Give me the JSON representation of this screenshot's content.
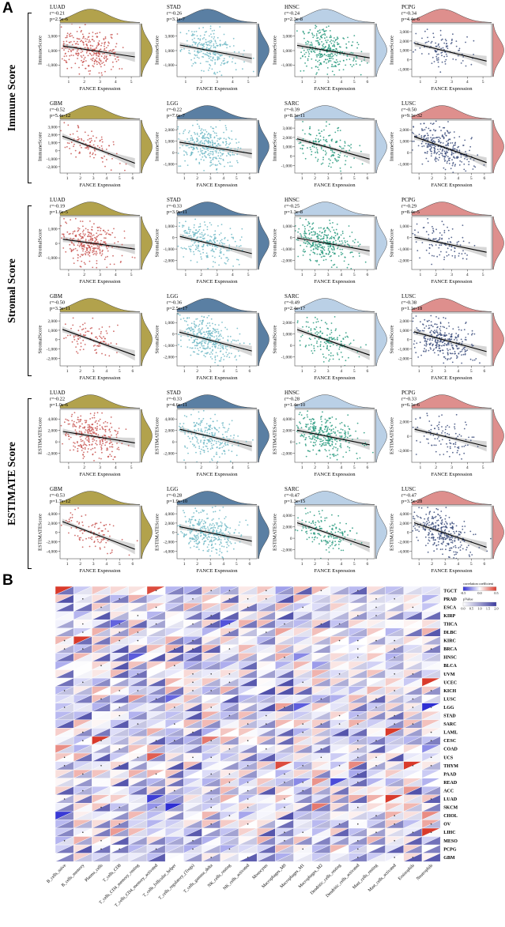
{
  "figure": {
    "panel_a_letter": "A",
    "panel_b_letter": "B"
  },
  "chart_data": [
    {
      "type": "scatter",
      "id": "panelA",
      "xlabel": "FANCE Expression",
      "groups": [
        {
          "label": "Immune Score",
          "ylabel": "ImmuneScore",
          "plots": [
            {
              "cancer": "LUAD",
              "r_text": "r=-0.21",
              "p_text": "p=2.5e-6",
              "r": -0.21,
              "n": 450,
              "dot": "#c85450",
              "marg": "#b2a24c",
              "xticks": [
                1,
                2,
                3,
                4,
                5
              ],
              "yticks": [
                3000,
                1000,
                -1000
              ]
            },
            {
              "cancer": "STAD",
              "r_text": "r=-0.26",
              "p_text": "p=3.1e-7",
              "r": -0.26,
              "n": 380,
              "dot": "#6fb9c6",
              "marg": "#5a7fa3",
              "xticks": [
                1,
                2,
                3,
                4,
                5
              ],
              "yticks": [
                3000,
                1000,
                -1000
              ]
            },
            {
              "cancer": "HNSC",
              "r_text": "r=-0.24",
              "p_text": "p=2.3e-8",
              "r": -0.24,
              "n": 480,
              "dot": "#26997c",
              "marg": "#bad0e6",
              "xticks": [
                1,
                2,
                3,
                4,
                5,
                6
              ],
              "yticks": [
                3000,
                1000,
                -1000
              ]
            },
            {
              "cancer": "PCPG",
              "r_text": "r=-0.34",
              "p_text": "p=4.4e-6",
              "r": -0.34,
              "n": 170,
              "dot": "#3c4e7d",
              "marg": "#de8f8d",
              "xticks": [
                1,
                2,
                3,
                4,
                5
              ],
              "yticks": [
                3000,
                2000,
                1000,
                0,
                -1000
              ]
            },
            {
              "cancer": "GBM",
              "r_text": "r=-0.52",
              "p_text": "p=5.4e-12",
              "r": -0.52,
              "n": 160,
              "dot": "#c85450",
              "marg": "#b2a24c",
              "xticks": [
                1,
                2,
                3,
                4,
                5,
                6
              ],
              "yticks": [
                3000,
                2000,
                1000,
                0,
                -1000,
                -2000
              ]
            },
            {
              "cancer": "LGG",
              "r_text": "r=-0.22",
              "p_text": "p=7.6e-7",
              "r": -0.22,
              "n": 500,
              "dot": "#6fb9c6",
              "marg": "#5a7fa3",
              "xticks": [
                1,
                2,
                3,
                4,
                5,
                6
              ],
              "yticks": [
                2000,
                1000,
                0,
                -1000
              ]
            },
            {
              "cancer": "SARC",
              "r_text": "r=-0.39",
              "p_text": "p=8.1e-11",
              "r": -0.39,
              "n": 250,
              "dot": "#26997c",
              "marg": "#bad0e6",
              "xticks": [
                1,
                2,
                3,
                4,
                5,
                6
              ],
              "yticks": [
                3000,
                2000,
                1000,
                0,
                -1000
              ]
            },
            {
              "cancer": "LUSC",
              "r_text": "r=-0.50",
              "p_text": "p=9.1e-32",
              "r": -0.5,
              "n": 470,
              "dot": "#3c4e7d",
              "marg": "#de8f8d",
              "xticks": [
                1,
                2,
                3,
                4,
                5,
                6
              ],
              "yticks": [
                2000,
                1000,
                0,
                -1000
              ]
            }
          ]
        },
        {
          "label": "Stromal Score",
          "ylabel": "StromalScore",
          "plots": [
            {
              "cancer": "LUAD",
              "r_text": "r=-0.19",
              "p_text": "p=1.6e-5",
              "r": -0.19,
              "n": 450,
              "dot": "#c85450",
              "marg": "#b2a24c",
              "xticks": [
                1,
                2,
                3,
                4,
                5
              ],
              "yticks": [
                1000,
                0,
                -1000
              ]
            },
            {
              "cancer": "STAD",
              "r_text": "r=-0.33",
              "p_text": "p=3.9e-11",
              "r": -0.33,
              "n": 380,
              "dot": "#6fb9c6",
              "marg": "#5a7fa3",
              "xticks": [
                1,
                2,
                3,
                4,
                5
              ],
              "yticks": [
                1000,
                0,
                -1000,
                -2000
              ]
            },
            {
              "cancer": "HNSC",
              "r_text": "r=-0.25",
              "p_text": "p=1.3e-8",
              "r": -0.25,
              "n": 480,
              "dot": "#26997c",
              "marg": "#bad0e6",
              "xticks": [
                1,
                2,
                3,
                4,
                5,
                6
              ],
              "yticks": [
                1000,
                0,
                -1000,
                -2000
              ]
            },
            {
              "cancer": "PCPG",
              "r_text": "r=-0.29",
              "p_text": "p=8.4e-5",
              "r": -0.29,
              "n": 170,
              "dot": "#3c4e7d",
              "marg": "#de8f8d",
              "xticks": [
                1,
                2,
                3,
                4,
                5
              ],
              "yticks": [
                1000,
                0,
                -1000,
                -2000
              ]
            },
            {
              "cancer": "GBM",
              "r_text": "r=-0.50",
              "p_text": "p=3.3e-11",
              "r": -0.5,
              "n": 160,
              "dot": "#c85450",
              "marg": "#b2a24c",
              "xticks": [
                1,
                2,
                3,
                4,
                5,
                6
              ],
              "yticks": [
                2000,
                1000,
                0,
                -1000,
                -2000
              ]
            },
            {
              "cancer": "LGG",
              "r_text": "r=-0.36",
              "p_text": "p=2.5e-17",
              "r": -0.36,
              "n": 500,
              "dot": "#6fb9c6",
              "marg": "#5a7fa3",
              "xticks": [
                1,
                2,
                3,
                4,
                5,
                6
              ],
              "yticks": [
                1000,
                0,
                -1000,
                -2000
              ]
            },
            {
              "cancer": "SARC",
              "r_text": "r=-0.49",
              "p_text": "p=2.4e-17",
              "r": -0.49,
              "n": 250,
              "dot": "#26997c",
              "marg": "#bad0e6",
              "xticks": [
                1,
                2,
                3,
                4,
                5,
                6
              ],
              "yticks": [
                2000,
                1000,
                0,
                -1000
              ]
            },
            {
              "cancer": "LUSC",
              "r_text": "r=-0.38",
              "p_text": "p=1.1e-18",
              "r": -0.38,
              "n": 470,
              "dot": "#3c4e7d",
              "marg": "#de8f8d",
              "xticks": [
                1,
                2,
                3,
                4,
                5,
                6
              ],
              "yticks": [
                2000,
                1000,
                0,
                -1000,
                -2000
              ]
            }
          ]
        },
        {
          "label": "ESTIMATE Score",
          "ylabel": "ESTIMATEScore",
          "plots": [
            {
              "cancer": "LUAD",
              "r_text": "r=-0.22",
              "p_text": "p=1.0e-6",
              "r": -0.22,
              "n": 450,
              "dot": "#c85450",
              "marg": "#b2a24c",
              "xticks": [
                1,
                2,
                3,
                4,
                5
              ],
              "yticks": [
                4000,
                2000,
                0,
                -2000
              ]
            },
            {
              "cancer": "STAD",
              "r_text": "r=-0.33",
              "p_text": "p=4.6e-11",
              "r": -0.33,
              "n": 380,
              "dot": "#6fb9c6",
              "marg": "#5a7fa3",
              "xticks": [
                1,
                2,
                3,
                4,
                5
              ],
              "yticks": [
                4000,
                2000,
                0,
                -2000
              ]
            },
            {
              "cancer": "HNSC",
              "r_text": "r=-0.28",
              "p_text": "p=1.4e-10",
              "r": -0.28,
              "n": 480,
              "dot": "#26997c",
              "marg": "#bad0e6",
              "xticks": [
                1,
                2,
                3,
                4,
                5,
                6
              ],
              "yticks": [
                4000,
                2000,
                0,
                -2000
              ]
            },
            {
              "cancer": "PCPG",
              "r_text": "r=-0.33",
              "p_text": "p=6.1e-6",
              "r": -0.33,
              "n": 170,
              "dot": "#3c4e7d",
              "marg": "#de8f8d",
              "xticks": [
                1,
                2,
                3,
                4,
                5
              ],
              "yticks": [
                2000,
                0,
                -2000
              ]
            },
            {
              "cancer": "GBM",
              "r_text": "r=-0.53",
              "p_text": "p=1.7e-12",
              "r": -0.53,
              "n": 160,
              "dot": "#c85450",
              "marg": "#b2a24c",
              "xticks": [
                1,
                2,
                3,
                4,
                5,
                6
              ],
              "yticks": [
                4000,
                2000,
                0,
                -2000,
                -4000
              ]
            },
            {
              "cancer": "LGG",
              "r_text": "r=-0.28",
              "p_text": "p=1.9e-10",
              "r": -0.28,
              "n": 500,
              "dot": "#6fb9c6",
              "marg": "#5a7fa3",
              "xticks": [
                1,
                2,
                3,
                4,
                5,
                6
              ],
              "yticks": [
                4000,
                2000,
                0,
                -2000,
                -4000
              ]
            },
            {
              "cancer": "SARC",
              "r_text": "r=-0.47",
              "p_text": "p=1.3e-15",
              "r": -0.47,
              "n": 250,
              "dot": "#26997c",
              "marg": "#bad0e6",
              "xticks": [
                1,
                2,
                3,
                4,
                5,
                6
              ],
              "yticks": [
                4000,
                2000,
                0,
                -2000
              ]
            },
            {
              "cancer": "LUSC",
              "r_text": "r=-0.47",
              "p_text": "p=3.5e-28",
              "r": -0.47,
              "n": 470,
              "dot": "#3c4e7d",
              "marg": "#de8f8d",
              "xticks": [
                1,
                2,
                3,
                4,
                5,
                6
              ],
              "yticks": [
                4000,
                2000,
                0,
                -2000,
                -4000
              ]
            }
          ]
        }
      ]
    },
    {
      "type": "heatmap",
      "id": "panelB",
      "rows": [
        "TGCT",
        "PRAD",
        "ESCA",
        "KIRP",
        "THCA",
        "DLBC",
        "KIRC",
        "BRCA",
        "HNSC",
        "BLCA",
        "UVM",
        "UCEC",
        "KICH",
        "LUSC",
        "LGG",
        "STAD",
        "SARC",
        "LAML",
        "CESC",
        "COAD",
        "UCS",
        "THYM",
        "PAAD",
        "READ",
        "ACC",
        "LUAD",
        "SKCM",
        "CHOL",
        "OV",
        "LIHC",
        "MESO",
        "PCPG",
        "GBM"
      ],
      "cols": [
        "B_cells_naive",
        "B_cells_memory",
        "Plasma_cells",
        "T_cells_CD8",
        "T_cells_CD4_memory_resting",
        "T_cells_CD4_memory_activated",
        "T_cells_follicular_helper",
        "T_cells_regulatory_(Tregs)",
        "T_cells_gamma_delta",
        "NK_cells_resting",
        "NK_cells_activated",
        "Monocytes",
        "Macrophages_M0",
        "Macrophages_M1",
        "Macrophages_M2",
        "Dendritic_cells_resting",
        "Dendritic_cells_activated",
        "Mast_cells_resting",
        "Mast_cells_activated",
        "Eosinophils",
        "Neutrophils"
      ],
      "legend": {
        "corr_title": "correlation coefficient",
        "corr_ticks": [
          "-0.5",
          "0.0",
          "0.5"
        ],
        "p_title": "pValue",
        "p_ticks": [
          "0.0",
          "0.5",
          "1.0",
          "1.5",
          "2.0"
        ]
      },
      "colors": {
        "neg": "#2f2fd3",
        "pos": "#d93a2b",
        "pval": "#3d3da0",
        "dot": "#3a3a3a"
      },
      "seed": 42,
      "highlights": [
        {
          "row": 0,
          "col": 0,
          "corr": 0.55
        },
        {
          "row": 0,
          "col": 5,
          "corr": 0.5
        },
        {
          "row": 11,
          "col": 20,
          "corr": 0.55
        },
        {
          "row": 21,
          "col": 12,
          "corr": 0.5
        },
        {
          "row": 20,
          "col": 5,
          "corr": 0.45
        }
      ]
    }
  ]
}
